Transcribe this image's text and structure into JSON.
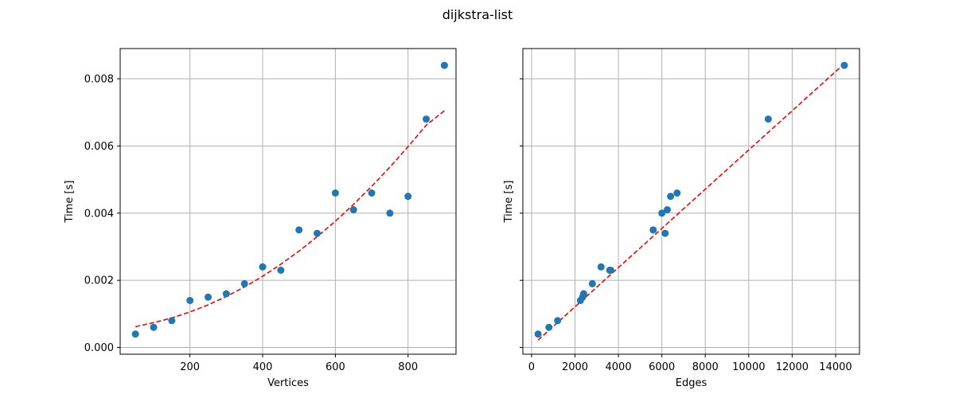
{
  "figure": {
    "suptitle": "dijkstra-list"
  },
  "colors": {
    "points": "#1f77b4",
    "fit": "#ff0000",
    "grid": "#b0b0b0"
  },
  "chart_data": [
    {
      "type": "scatter",
      "xlabel": "Vertices",
      "ylabel": "Time [s]",
      "xlim": [
        8,
        932
      ],
      "ylim": [
        -0.0002,
        0.0089
      ],
      "xticks": [
        200,
        400,
        600,
        800
      ],
      "xtick_labels": [
        "200",
        "400",
        "600",
        "800"
      ],
      "yticks": [
        0.0,
        0.002,
        0.004,
        0.006,
        0.008
      ],
      "ytick_labels": [
        "0.000",
        "0.002",
        "0.004",
        "0.006",
        "0.008"
      ],
      "grid": true,
      "series": [
        {
          "kind": "scatter",
          "x": [
            50,
            100,
            150,
            200,
            250,
            300,
            350,
            400,
            450,
            500,
            550,
            600,
            650,
            700,
            750,
            800,
            850,
            900
          ],
          "y": [
            0.0004,
            0.0006,
            0.0008,
            0.0014,
            0.0015,
            0.0016,
            0.0019,
            0.0024,
            0.0023,
            0.0035,
            0.0034,
            0.0046,
            0.0041,
            0.0046,
            0.004,
            0.0045,
            0.0068,
            0.0084
          ]
        },
        {
          "kind": "fit-line",
          "style": "dashed",
          "x": [
            50,
            100,
            150,
            200,
            250,
            300,
            350,
            400,
            450,
            500,
            550,
            600,
            650,
            700,
            750,
            800,
            850,
            900
          ],
          "y": [
            0.00062,
            0.00074,
            0.00088,
            0.00106,
            0.00127,
            0.00152,
            0.0018,
            0.00212,
            0.00248,
            0.00287,
            0.0033,
            0.00376,
            0.00426,
            0.0048,
            0.00537,
            0.00598,
            0.00662,
            0.00705
          ]
        }
      ]
    },
    {
      "type": "scatter",
      "xlabel": "Edges",
      "ylabel": "Time [s]",
      "xlim": [
        -400,
        15100
      ],
      "ylim": [
        -0.0002,
        0.0089
      ],
      "xticks": [
        0,
        2000,
        4000,
        6000,
        8000,
        10000,
        12000,
        14000
      ],
      "xtick_labels": [
        "0",
        "2000",
        "4000",
        "6000",
        "8000",
        "10000",
        "12000",
        "14000"
      ],
      "yticks": [
        0.0,
        0.002,
        0.004,
        0.006,
        0.008
      ],
      "grid": true,
      "series": [
        {
          "kind": "scatter",
          "x": [
            300,
            800,
            1200,
            2250,
            2350,
            2400,
            2800,
            3200,
            3600,
            3650,
            5600,
            6000,
            6150,
            6250,
            6400,
            6700,
            10900,
            14400
          ],
          "y": [
            0.0004,
            0.0006,
            0.0008,
            0.0014,
            0.0015,
            0.0016,
            0.0019,
            0.0024,
            0.0023,
            0.0023,
            0.0035,
            0.004,
            0.0034,
            0.0041,
            0.0045,
            0.0046,
            0.0068,
            0.0084
          ]
        },
        {
          "kind": "fit-line",
          "style": "dashed",
          "x": [
            300,
            14400
          ],
          "y": [
            0.00022,
            0.00845
          ]
        }
      ]
    }
  ]
}
